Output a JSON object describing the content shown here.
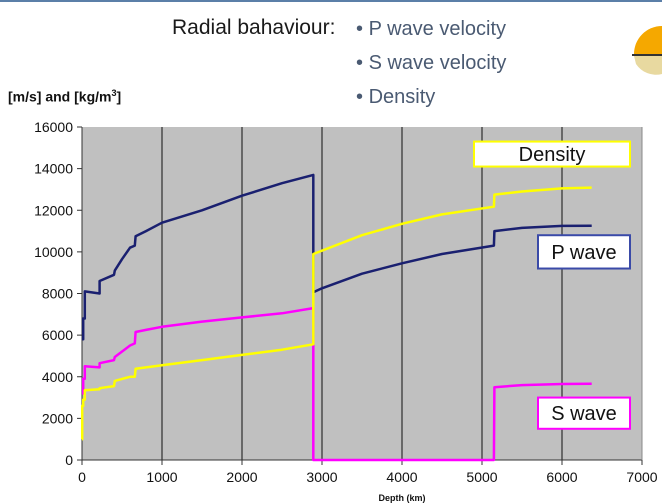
{
  "header": {
    "heading": "Radial bahaviour:",
    "bullets": [
      "P wave velocity",
      "S wave velocity",
      "Density"
    ],
    "bullet_char": "•"
  },
  "logo": {
    "icon": "earth-globe-icon",
    "colors": [
      "#f5a800",
      "#e8d9a0"
    ]
  },
  "chart_data": {
    "type": "line",
    "title": "",
    "xlabel": "Depth (km)",
    "ylabel": "[m/s] and [kg/m³]",
    "xlim": [
      0,
      7000
    ],
    "ylim": [
      0,
      16000
    ],
    "xticks": [
      0,
      1000,
      2000,
      3000,
      4000,
      5000,
      6000,
      7000
    ],
    "yticks": [
      0,
      2000,
      4000,
      6000,
      8000,
      10000,
      12000,
      14000,
      16000
    ],
    "grid": "vertical",
    "background": "#c0c0c0",
    "series": [
      {
        "name": "P wave",
        "color": "#1a2070",
        "label_color": "#3a4aa8",
        "points": [
          [
            0,
            5800
          ],
          [
            15,
            5800
          ],
          [
            15,
            6800
          ],
          [
            35,
            6800
          ],
          [
            35,
            8100
          ],
          [
            220,
            8000
          ],
          [
            220,
            8600
          ],
          [
            400,
            8900
          ],
          [
            410,
            9100
          ],
          [
            500,
            9650
          ],
          [
            600,
            10200
          ],
          [
            660,
            10300
          ],
          [
            670,
            10750
          ],
          [
            800,
            11000
          ],
          [
            1000,
            11400
          ],
          [
            1500,
            12000
          ],
          [
            2000,
            12700
          ],
          [
            2500,
            13300
          ],
          [
            2891,
            13700
          ],
          [
            2891,
            8060
          ],
          [
            3000,
            8250
          ],
          [
            3500,
            8950
          ],
          [
            4000,
            9450
          ],
          [
            4500,
            9900
          ],
          [
            5149,
            10300
          ],
          [
            5155,
            11000
          ],
          [
            5500,
            11150
          ],
          [
            6000,
            11250
          ],
          [
            6371,
            11260
          ]
        ]
      },
      {
        "name": "S wave",
        "color": "#ff00ff",
        "label_color": "#ff00ff",
        "points": [
          [
            0,
            3200
          ],
          [
            15,
            3200
          ],
          [
            15,
            3900
          ],
          [
            35,
            3900
          ],
          [
            35,
            4500
          ],
          [
            220,
            4450
          ],
          [
            220,
            4650
          ],
          [
            400,
            4800
          ],
          [
            410,
            4950
          ],
          [
            600,
            5500
          ],
          [
            660,
            5600
          ],
          [
            670,
            6150
          ],
          [
            800,
            6250
          ],
          [
            1000,
            6400
          ],
          [
            1500,
            6650
          ],
          [
            2000,
            6850
          ],
          [
            2500,
            7050
          ],
          [
            2891,
            7300
          ],
          [
            2891,
            0
          ],
          [
            5149,
            0
          ],
          [
            5155,
            3500
          ],
          [
            5500,
            3600
          ],
          [
            6000,
            3650
          ],
          [
            6371,
            3660
          ]
        ]
      },
      {
        "name": "Density",
        "color": "#ffff00",
        "label_color": "#ffff00",
        "points": [
          [
            0,
            1000
          ],
          [
            3,
            1000
          ],
          [
            3,
            2600
          ],
          [
            15,
            2600
          ],
          [
            15,
            2900
          ],
          [
            35,
            2900
          ],
          [
            35,
            3350
          ],
          [
            220,
            3400
          ],
          [
            220,
            3450
          ],
          [
            400,
            3550
          ],
          [
            410,
            3800
          ],
          [
            600,
            4000
          ],
          [
            660,
            4000
          ],
          [
            670,
            4380
          ],
          [
            800,
            4450
          ],
          [
            1000,
            4550
          ],
          [
            1500,
            4800
          ],
          [
            2000,
            5050
          ],
          [
            2500,
            5300
          ],
          [
            2891,
            5560
          ],
          [
            2891,
            9900
          ],
          [
            3500,
            10800
          ],
          [
            4000,
            11350
          ],
          [
            4500,
            11800
          ],
          [
            5149,
            12170
          ],
          [
            5155,
            12750
          ],
          [
            5500,
            12900
          ],
          [
            6000,
            13050
          ],
          [
            6371,
            13090
          ]
        ]
      }
    ],
    "legend_boxes": [
      {
        "text": "Density",
        "series": "Density"
      },
      {
        "text": "P wave",
        "series": "P wave"
      },
      {
        "text": "S wave",
        "series": "S wave"
      }
    ]
  }
}
